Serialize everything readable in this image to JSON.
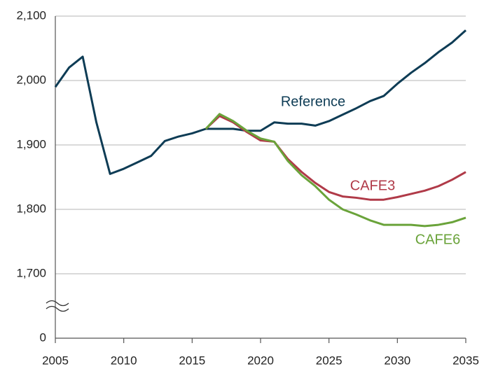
{
  "chart_data": {
    "type": "line",
    "x": [
      2005,
      2006,
      2007,
      2008,
      2009,
      2010,
      2011,
      2012,
      2013,
      2014,
      2015,
      2016,
      2017,
      2018,
      2019,
      2020,
      2021,
      2022,
      2023,
      2024,
      2025,
      2026,
      2027,
      2028,
      2029,
      2030,
      2031,
      2032,
      2033,
      2034,
      2035
    ],
    "series": [
      {
        "name": "Reference",
        "color": "#0e3c55",
        "values": [
          1990,
          2020,
          2037,
          1935,
          1855,
          1863,
          1873,
          1883,
          1906,
          1913,
          1918,
          1925,
          1925,
          1925,
          1922,
          1922,
          1935,
          1933,
          1933,
          1930,
          1937,
          1947,
          1957,
          1968,
          1976,
          1995,
          2012,
          2027,
          2044,
          2059,
          2078
        ]
      },
      {
        "name": "CAFE3",
        "color": "#b03a48",
        "values": [
          null,
          null,
          null,
          null,
          null,
          null,
          null,
          null,
          null,
          null,
          null,
          1925,
          1945,
          1935,
          1920,
          1907,
          1905,
          1878,
          1858,
          1841,
          1827,
          1820,
          1818,
          1815,
          1815,
          1819,
          1824,
          1829,
          1836,
          1846,
          1858
        ]
      },
      {
        "name": "CAFE6",
        "color": "#6aa33a",
        "values": [
          null,
          null,
          null,
          null,
          null,
          null,
          null,
          null,
          null,
          null,
          null,
          1925,
          1948,
          1937,
          1922,
          1910,
          1905,
          1875,
          1853,
          1836,
          1815,
          1800,
          1792,
          1783,
          1776,
          1776,
          1776,
          1774,
          1776,
          1780,
          1787
        ]
      }
    ],
    "xlim": [
      2005,
      2035
    ],
    "xticks": [
      2005,
      2010,
      2015,
      2020,
      2025,
      2030,
      2035
    ],
    "ylim": [
      0,
      2100
    ],
    "axis_break": [
      0,
      1700
    ],
    "yticks": [
      0,
      {
        "value": 1700,
        "label": "1,700"
      },
      {
        "value": 1800,
        "label": "1,800"
      },
      {
        "value": 1900,
        "label": "1,900"
      },
      {
        "value": 2000,
        "label": "2,000"
      },
      {
        "value": 2100,
        "label": "2,100"
      }
    ],
    "grid": true
  }
}
